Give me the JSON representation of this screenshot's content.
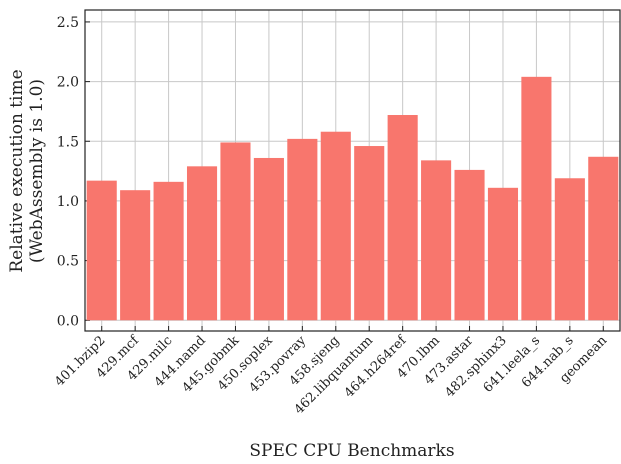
{
  "chart_data": {
    "type": "bar",
    "xlabel": "SPEC CPU Benchmarks",
    "ylabel": [
      "Relative execution time",
      "(WebAssembly is 1.0)"
    ],
    "categories": [
      "401.bzip2",
      "429.mcf",
      "429.milc",
      "444.namd",
      "445.gobmk",
      "450.soplex",
      "453.povray",
      "458.sjeng",
      "462.libquantum",
      "464.h264ref",
      "470.lbm",
      "473.astar",
      "482.sphinx3",
      "641.leela_s",
      "644.nab_s",
      "geomean"
    ],
    "values": [
      1.17,
      1.09,
      1.16,
      1.29,
      1.49,
      1.36,
      1.52,
      1.58,
      1.46,
      1.72,
      1.34,
      1.26,
      1.11,
      2.04,
      1.19,
      1.37
    ],
    "color": "#f8766d",
    "ylim": [
      -0.09,
      2.6
    ],
    "yticks": [
      {
        "value": 0,
        "label": "0.0"
      },
      0.5,
      {
        "value": 1,
        "label": "1.0"
      },
      1.5,
      {
        "value": 2,
        "label": "2.0"
      },
      2.5
    ],
    "grid": true
  }
}
